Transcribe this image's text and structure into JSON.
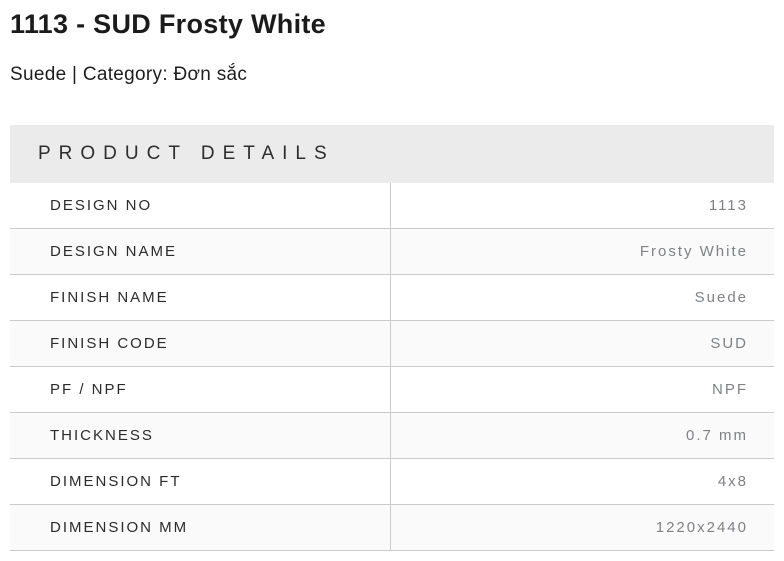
{
  "product": {
    "title": "1113 - SUD Frosty White",
    "subtitle": "Suede | Category: Đơn sắc"
  },
  "details": {
    "header": "PRODUCT DETAILS",
    "rows": [
      {
        "label": "DESIGN NO",
        "value": "1113"
      },
      {
        "label": "DESIGN NAME",
        "value": "Frosty White"
      },
      {
        "label": "FINISH NAME",
        "value": "Suede"
      },
      {
        "label": "FINISH CODE",
        "value": "SUD"
      },
      {
        "label": "PF / NPF",
        "value": "NPF"
      },
      {
        "label": "THICKNESS",
        "value": "0.7 mm"
      },
      {
        "label": "DIMENSION FT",
        "value": "4x8"
      },
      {
        "label": "DIMENSION MM",
        "value": "1220x2440"
      }
    ]
  },
  "colors": {
    "header_band_bg": "#ebebeb",
    "striped_row_bg": "#fafafa",
    "divider": "#cbcbcb",
    "label_text": "#2b2b2b",
    "value_text": "#7f8184",
    "title_text": "#1b1b1b"
  }
}
